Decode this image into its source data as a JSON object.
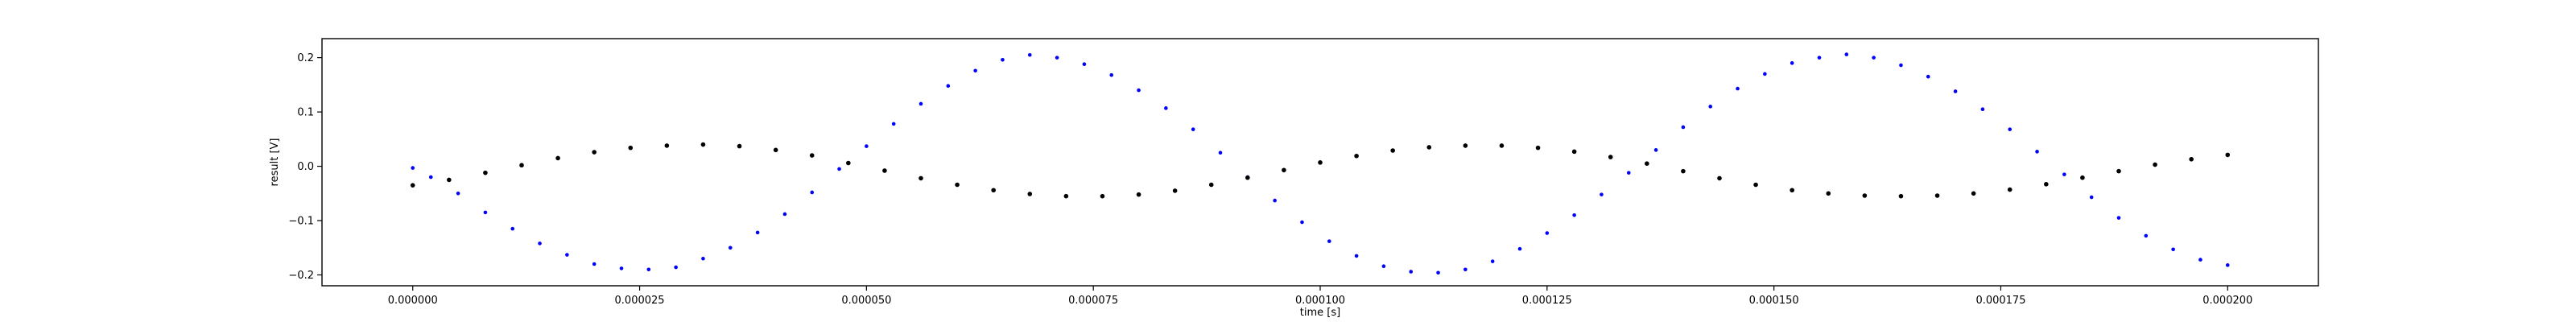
{
  "chart_data": {
    "type": "scatter",
    "title": "",
    "xlabel": "time [s]",
    "ylabel": "result [V]",
    "xlim": [
      -1e-05,
      0.00021
    ],
    "ylim": [
      -0.22,
      0.235
    ],
    "grid": false,
    "x_ticks": [
      0,
      2.5e-05,
      5e-05,
      7.5e-05,
      0.0001,
      0.000125,
      0.00015,
      0.000175,
      0.0002
    ],
    "x_tick_labels": [
      "0.000000",
      "0.000025",
      "0.000050",
      "0.000075",
      "0.000100",
      "0.000125",
      "0.000150",
      "0.000175",
      "0.000200"
    ],
    "y_ticks": [
      -0.2,
      -0.1,
      0.0,
      0.1,
      0.2
    ],
    "y_tick_labels": [
      "−0.2",
      "−0.1",
      "0.0",
      "0.1",
      "0.2"
    ],
    "series": [
      {
        "color": "#0000ff",
        "marker_size": 2.3,
        "points": [
          [
            0.0,
            -0.003
          ],
          [
            2e-06,
            -0.02
          ],
          [
            5e-06,
            -0.05
          ],
          [
            8e-06,
            -0.085
          ],
          [
            1.1e-05,
            -0.115
          ],
          [
            1.4e-05,
            -0.142
          ],
          [
            1.7e-05,
            -0.163
          ],
          [
            2e-05,
            -0.18
          ],
          [
            2.3e-05,
            -0.188
          ],
          [
            2.6e-05,
            -0.19
          ],
          [
            2.9e-05,
            -0.186
          ],
          [
            3.2e-05,
            -0.17
          ],
          [
            3.5e-05,
            -0.15
          ],
          [
            3.8e-05,
            -0.122
          ],
          [
            4.1e-05,
            -0.088
          ],
          [
            4.4e-05,
            -0.048
          ],
          [
            4.7e-05,
            -0.005
          ],
          [
            5e-05,
            0.037
          ],
          [
            5.3e-05,
            0.078
          ],
          [
            5.6e-05,
            0.115
          ],
          [
            5.9e-05,
            0.148
          ],
          [
            6.2e-05,
            0.176
          ],
          [
            6.5e-05,
            0.196
          ],
          [
            6.8e-05,
            0.205
          ],
          [
            7.1e-05,
            0.2
          ],
          [
            7.4e-05,
            0.188
          ],
          [
            7.7e-05,
            0.168
          ],
          [
            8e-05,
            0.14
          ],
          [
            8.3e-05,
            0.107
          ],
          [
            8.6e-05,
            0.068
          ],
          [
            8.9e-05,
            0.025
          ],
          [
            9.2e-05,
            -0.02
          ],
          [
            9.5e-05,
            -0.063
          ],
          [
            9.8e-05,
            -0.103
          ],
          [
            0.000101,
            -0.138
          ],
          [
            0.000104,
            -0.165
          ],
          [
            0.000107,
            -0.184
          ],
          [
            0.00011,
            -0.194
          ],
          [
            0.000113,
            -0.196
          ],
          [
            0.000116,
            -0.19
          ],
          [
            0.000119,
            -0.175
          ],
          [
            0.000122,
            -0.152
          ],
          [
            0.000125,
            -0.123
          ],
          [
            0.000128,
            -0.09
          ],
          [
            0.000131,
            -0.052
          ],
          [
            0.000134,
            -0.012
          ],
          [
            0.000137,
            0.03
          ],
          [
            0.00014,
            0.072
          ],
          [
            0.000143,
            0.11
          ],
          [
            0.000146,
            0.143
          ],
          [
            0.000149,
            0.17
          ],
          [
            0.000152,
            0.19
          ],
          [
            0.000155,
            0.2
          ],
          [
            0.000158,
            0.206
          ],
          [
            0.000161,
            0.2
          ],
          [
            0.000164,
            0.186
          ],
          [
            0.000167,
            0.165
          ],
          [
            0.00017,
            0.138
          ],
          [
            0.000173,
            0.105
          ],
          [
            0.000176,
            0.068
          ],
          [
            0.000179,
            0.027
          ],
          [
            0.000182,
            -0.015
          ],
          [
            0.000185,
            -0.057
          ],
          [
            0.000188,
            -0.095
          ],
          [
            0.000191,
            -0.128
          ],
          [
            0.000194,
            -0.153
          ],
          [
            0.000197,
            -0.172
          ],
          [
            0.0002,
            -0.182
          ]
        ]
      },
      {
        "color": "#000000",
        "marker_size": 2.8,
        "points": [
          [
            0.0,
            -0.035
          ],
          [
            4e-06,
            -0.025
          ],
          [
            8e-06,
            -0.012
          ],
          [
            1.2e-05,
            0.002
          ],
          [
            1.6e-05,
            0.015
          ],
          [
            2e-05,
            0.026
          ],
          [
            2.4e-05,
            0.034
          ],
          [
            2.8e-05,
            0.038
          ],
          [
            3.2e-05,
            0.04
          ],
          [
            3.6e-05,
            0.037
          ],
          [
            4e-05,
            0.03
          ],
          [
            4.4e-05,
            0.02
          ],
          [
            4.8e-05,
            0.006
          ],
          [
            5.2e-05,
            -0.008
          ],
          [
            5.6e-05,
            -0.022
          ],
          [
            6e-05,
            -0.034
          ],
          [
            6.4e-05,
            -0.044
          ],
          [
            6.8e-05,
            -0.051
          ],
          [
            7.2e-05,
            -0.055
          ],
          [
            7.6e-05,
            -0.055
          ],
          [
            8e-05,
            -0.052
          ],
          [
            8.4e-05,
            -0.045
          ],
          [
            8.8e-05,
            -0.034
          ],
          [
            9.2e-05,
            -0.021
          ],
          [
            9.6e-05,
            -0.007
          ],
          [
            0.0001,
            0.007
          ],
          [
            0.000104,
            0.019
          ],
          [
            0.000108,
            0.029
          ],
          [
            0.000112,
            0.035
          ],
          [
            0.000116,
            0.038
          ],
          [
            0.00012,
            0.038
          ],
          [
            0.000124,
            0.034
          ],
          [
            0.000128,
            0.027
          ],
          [
            0.000132,
            0.017
          ],
          [
            0.000136,
            0.005
          ],
          [
            0.00014,
            -0.009
          ],
          [
            0.000144,
            -0.022
          ],
          [
            0.000148,
            -0.034
          ],
          [
            0.000152,
            -0.044
          ],
          [
            0.000156,
            -0.05
          ],
          [
            0.00016,
            -0.054
          ],
          [
            0.000164,
            -0.055
          ],
          [
            0.000168,
            -0.054
          ],
          [
            0.000172,
            -0.05
          ],
          [
            0.000176,
            -0.043
          ],
          [
            0.00018,
            -0.033
          ],
          [
            0.000184,
            -0.021
          ],
          [
            0.000188,
            -0.009
          ],
          [
            0.000192,
            0.003
          ],
          [
            0.000196,
            0.013
          ],
          [
            0.0002,
            0.021
          ]
        ]
      }
    ]
  }
}
